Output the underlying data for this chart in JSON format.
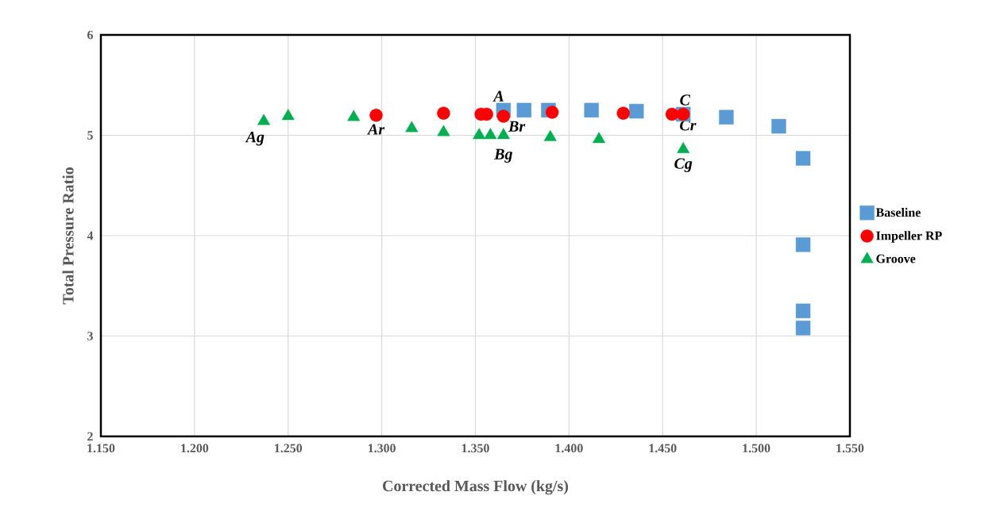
{
  "chart_data": {
    "type": "scatter",
    "xlabel": "Corrected Mass Flow (kg/s)",
    "ylabel": "Total Pressure Ratio",
    "xlim": [
      1.15,
      1.55
    ],
    "ylim": [
      2,
      6
    ],
    "xticks": [
      {
        "value": 1.15,
        "label": "1.150"
      },
      {
        "value": 1.2,
        "label": "1.200"
      },
      {
        "value": 1.25,
        "label": "1.250"
      },
      {
        "value": 1.3,
        "label": "1.300"
      },
      {
        "value": 1.35,
        "label": "1.350"
      },
      {
        "value": 1.4,
        "label": "1.400"
      },
      {
        "value": 1.45,
        "label": "1.450"
      },
      {
        "value": 1.5,
        "label": "1.500"
      },
      {
        "value": 1.55,
        "label": "1.550"
      }
    ],
    "yticks": [
      2,
      3,
      4,
      5,
      6
    ],
    "grid": true,
    "legend": "right",
    "series": [
      {
        "name": "Baseline",
        "color": "#5b9bd5",
        "marker": "square",
        "x": [
          1.365,
          1.376,
          1.389,
          1.412,
          1.436,
          1.461,
          1.484,
          1.512,
          1.525,
          1.525,
          1.525,
          1.525
        ],
        "values": [
          5.25,
          5.25,
          5.25,
          5.25,
          5.24,
          5.21,
          5.18,
          5.09,
          4.77,
          3.91,
          3.25,
          3.08
        ]
      },
      {
        "name": "Impeller RP",
        "color": "#ff0000",
        "marker": "circle",
        "x": [
          1.297,
          1.333,
          1.353,
          1.356,
          1.365,
          1.391,
          1.429,
          1.455,
          1.461
        ],
        "values": [
          5.2,
          5.22,
          5.21,
          5.21,
          5.19,
          5.23,
          5.22,
          5.21,
          5.21
        ]
      },
      {
        "name": "Groove",
        "color": "#00b050",
        "marker": "triangle",
        "x": [
          1.237,
          1.25,
          1.285,
          1.316,
          1.333,
          1.352,
          1.358,
          1.365,
          1.39,
          1.416,
          1.461
        ],
        "values": [
          5.14,
          5.19,
          5.18,
          5.07,
          5.03,
          5.0,
          5.0,
          5.0,
          4.98,
          4.96,
          4.86
        ]
      }
    ],
    "annotations": [
      {
        "text": "A",
        "x": 1.365,
        "y": 5.25
      },
      {
        "text": "Ar",
        "x": 1.297,
        "y": 5.2
      },
      {
        "text": "Ag",
        "x": 1.237,
        "y": 5.14
      },
      {
        "text": "Br",
        "x": 1.365,
        "y": 5.19
      },
      {
        "text": "Bg",
        "x": 1.365,
        "y": 5.0
      },
      {
        "text": "C",
        "x": 1.461,
        "y": 5.21
      },
      {
        "text": "Cr",
        "x": 1.461,
        "y": 5.21
      },
      {
        "text": "Cg",
        "x": 1.461,
        "y": 4.86
      }
    ]
  }
}
